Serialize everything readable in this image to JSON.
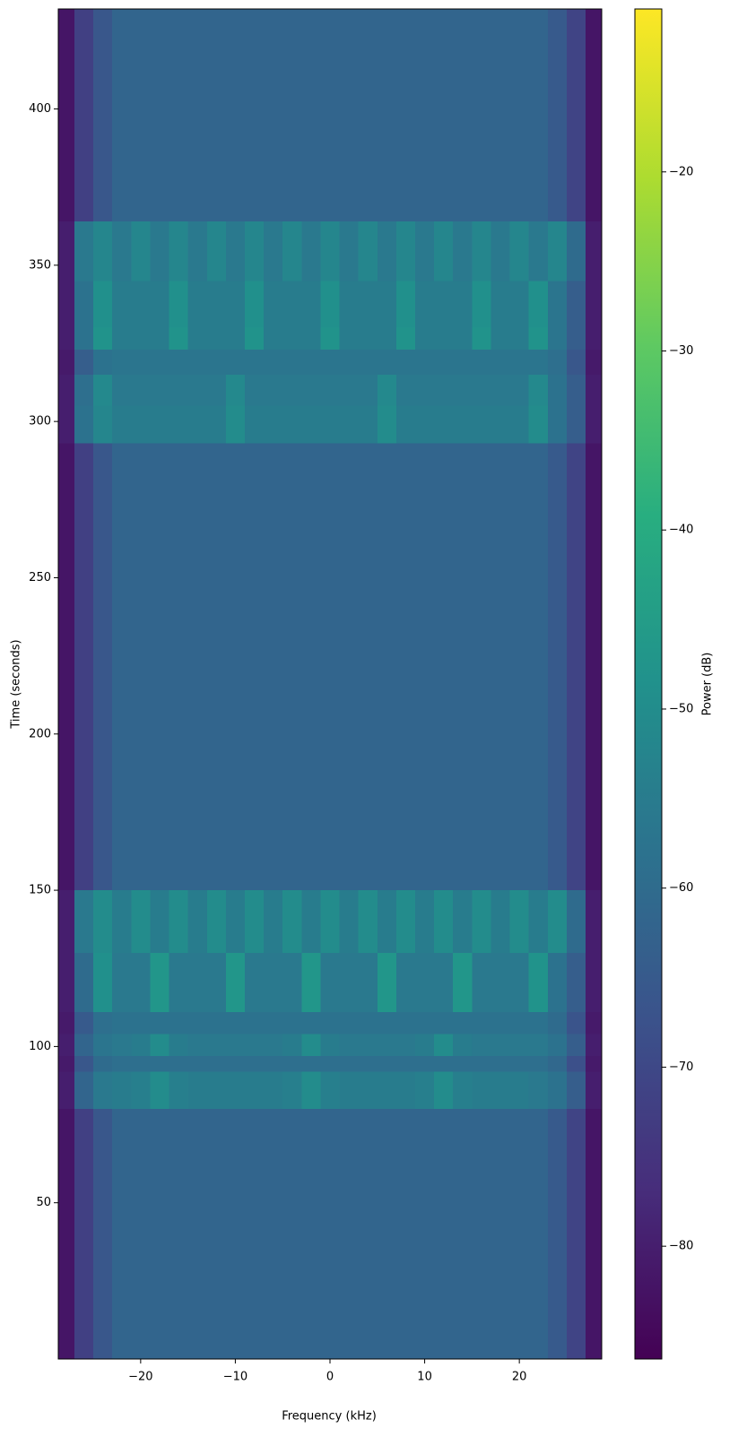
{
  "chart_data": {
    "type": "heatmap",
    "x_label": "Frequency (kHz)",
    "y_label": "Time (seconds)",
    "colorbar_label": "Power (dB)",
    "colormap": "viridis",
    "xlim": [
      -28.7,
      28.7
    ],
    "ylim": [
      0,
      432
    ],
    "clim": [
      -86.3,
      -10.9
    ],
    "xticks": [
      {
        "value": -20,
        "label": "−20"
      },
      {
        "value": -10,
        "label": "−10"
      },
      0,
      10,
      20
    ],
    "yticks": [
      50,
      100,
      150,
      200,
      250,
      300,
      350,
      400
    ],
    "cticks": [
      {
        "value": -80,
        "label": "−80"
      },
      {
        "value": -70,
        "label": "−70"
      },
      {
        "value": -60,
        "label": "−60"
      },
      {
        "value": -50,
        "label": "−50"
      },
      {
        "value": -40,
        "label": "−40"
      },
      {
        "value": -30,
        "label": "−30"
      },
      {
        "value": -20,
        "label": "−20"
      }
    ],
    "x_edges": [
      -28.7,
      -27,
      -25,
      -23,
      -21,
      -19,
      -17,
      -15,
      -13,
      -11,
      -9,
      -7,
      -5,
      -3,
      -1,
      1,
      3,
      5,
      7,
      9,
      11,
      13,
      15,
      17,
      19,
      21,
      23,
      25,
      27,
      28.7
    ],
    "y_edges": [
      0,
      80,
      92,
      97,
      104,
      111,
      130,
      150,
      293,
      305,
      315,
      323,
      330,
      345,
      364,
      432
    ],
    "z": [
      [
        -82,
        -72,
        -66,
        -62,
        -62,
        -62,
        -62,
        -62,
        -62,
        -62,
        -62,
        -62,
        -62,
        -62,
        -62,
        -62,
        -62,
        -62,
        -62,
        -62,
        -62,
        -62,
        -62,
        -62,
        -62,
        -62,
        -65,
        -71,
        -82
      ],
      [
        -80,
        -62,
        -56,
        -55,
        -54,
        -50,
        -54,
        -55,
        -55,
        -55,
        -55,
        -55,
        -54,
        -50,
        -54,
        -55,
        -55,
        -55,
        -55,
        -54,
        -50,
        -54,
        -55,
        -55,
        -55,
        -56,
        -58,
        -64,
        -80
      ],
      [
        -81,
        -66,
        -60,
        -59,
        -59,
        -59,
        -59,
        -59,
        -59,
        -59,
        -59,
        -59,
        -59,
        -59,
        -59,
        -59,
        -59,
        -59,
        -59,
        -59,
        -59,
        -59,
        -59,
        -59,
        -59,
        -59,
        -61,
        -68,
        -81
      ],
      [
        -80,
        -62,
        -57,
        -56,
        -55,
        -50,
        -55,
        -56,
        -56,
        -56,
        -56,
        -56,
        -55,
        -50,
        -55,
        -56,
        -56,
        -56,
        -56,
        -55,
        -50,
        -55,
        -56,
        -56,
        -56,
        -56,
        -58,
        -64,
        -80
      ],
      [
        -81,
        -65,
        -59,
        -58,
        -58,
        -58,
        -58,
        -58,
        -58,
        -58,
        -58,
        -58,
        -58,
        -58,
        -58,
        -58,
        -58,
        -58,
        -58,
        -58,
        -58,
        -58,
        -58,
        -58,
        -58,
        -58,
        -60,
        -67,
        -81
      ],
      [
        -80,
        -60,
        -49,
        -56,
        -56,
        -47,
        -56,
        -56,
        -56,
        -47,
        -56,
        -56,
        -56,
        -47,
        -56,
        -56,
        -56,
        -47,
        -56,
        -56,
        -56,
        -47,
        -56,
        -56,
        -56,
        -48,
        -58,
        -64,
        -80
      ],
      [
        -80,
        -56,
        -50,
        -55,
        -50,
        -55,
        -50,
        -55,
        -50,
        -55,
        -50,
        -55,
        -50,
        -55,
        -50,
        -55,
        -50,
        -55,
        -50,
        -55,
        -50,
        -55,
        -50,
        -55,
        -50,
        -55,
        -50,
        -60,
        -80
      ],
      [
        -82,
        -72,
        -66,
        -62,
        -62,
        -62,
        -62,
        -62,
        -62,
        -62,
        -62,
        -62,
        -62,
        -62,
        -62,
        -62,
        -62,
        -62,
        -62,
        -62,
        -62,
        -62,
        -62,
        -62,
        -62,
        -62,
        -65,
        -71,
        -82
      ],
      [
        -80,
        -58,
        -52,
        -55,
        -55,
        -55,
        -55,
        -55,
        -55,
        -50,
        -55,
        -55,
        -55,
        -55,
        -55,
        -55,
        -55,
        -50,
        -55,
        -55,
        -55,
        -55,
        -55,
        -55,
        -55,
        -50,
        -58,
        -64,
        -80
      ],
      [
        -80,
        -59,
        -51,
        -56,
        -56,
        -56,
        -56,
        -56,
        -56,
        -51,
        -56,
        -56,
        -56,
        -56,
        -56,
        -56,
        -56,
        -51,
        -56,
        -56,
        -56,
        -56,
        -56,
        -56,
        -56,
        -51,
        -58,
        -64,
        -80
      ],
      [
        -81,
        -64,
        -58,
        -57,
        -57,
        -57,
        -57,
        -57,
        -57,
        -57,
        -57,
        -57,
        -57,
        -57,
        -57,
        -57,
        -57,
        -57,
        -57,
        -57,
        -57,
        -57,
        -57,
        -57,
        -57,
        -57,
        -59,
        -66,
        -81
      ],
      [
        -80,
        -58,
        -48,
        -55,
        -55,
        -55,
        -48,
        -55,
        -55,
        -55,
        -48,
        -55,
        -55,
        -55,
        -48,
        -55,
        -55,
        -55,
        -48,
        -55,
        -55,
        -55,
        -48,
        -55,
        -55,
        -48,
        -57,
        -64,
        -80
      ],
      [
        -80,
        -58,
        -49,
        -55,
        -55,
        -55,
        -49,
        -55,
        -55,
        -55,
        -49,
        -55,
        -55,
        -55,
        -49,
        -55,
        -55,
        -55,
        -49,
        -55,
        -55,
        -55,
        -49,
        -55,
        -55,
        -49,
        -57,
        -64,
        -80
      ],
      [
        -80,
        -56,
        -52,
        -56,
        -52,
        -56,
        -52,
        -56,
        -52,
        -56,
        -52,
        -56,
        -52,
        -56,
        -52,
        -56,
        -52,
        -56,
        -52,
        -56,
        -52,
        -56,
        -52,
        -56,
        -52,
        -56,
        -52,
        -60,
        -80
      ],
      [
        -82,
        -72,
        -66,
        -62,
        -62,
        -62,
        -62,
        -62,
        -62,
        -62,
        -62,
        -62,
        -62,
        -62,
        -62,
        -62,
        -62,
        -62,
        -62,
        -62,
        -62,
        -62,
        -62,
        -62,
        -62,
        -62,
        -65,
        -71,
        -82
      ]
    ]
  }
}
